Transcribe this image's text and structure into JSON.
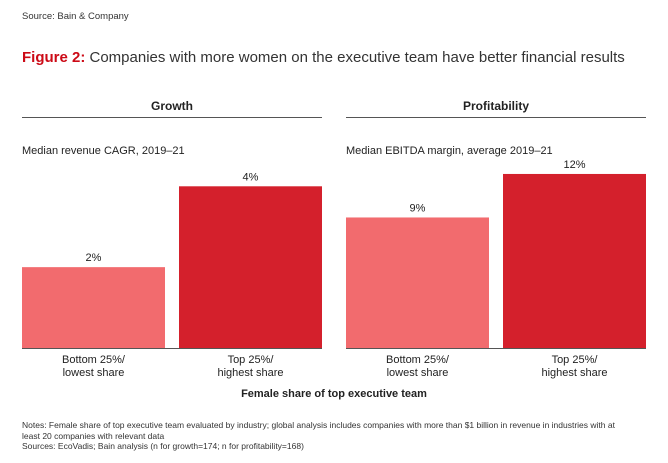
{
  "source_top": "Source: Bain & Company",
  "figure": {
    "label": "Figure 2:",
    "title": " Companies with more women on the executive team have better financial results"
  },
  "colors": {
    "accent": "#cc0a16",
    "bottom_bar": "#f26b6e",
    "top_bar": "#d4202c"
  },
  "chart_data": [
    {
      "type": "bar",
      "title": "Growth",
      "ylabel": "Median revenue CAGR, 2019–21",
      "categories": [
        [
          "Bottom 25%/",
          "lowest share"
        ],
        [
          "Top 25%/",
          "highest share"
        ]
      ],
      "values": [
        2,
        4
      ],
      "labels": [
        "2%",
        "4%"
      ],
      "ylim": [
        0,
        4.7
      ]
    },
    {
      "type": "bar",
      "title": "Profitability",
      "ylabel": "Median EBITDA margin, average 2019–21",
      "categories": [
        [
          "Bottom 25%/",
          "lowest share"
        ],
        [
          "Top 25%/",
          "highest share"
        ]
      ],
      "values": [
        9,
        12
      ],
      "labels": [
        "9%",
        "12%"
      ],
      "ylim": [
        0,
        13.1
      ]
    }
  ],
  "xlabel": "Female share of top executive team",
  "notes": [
    "Notes: Female share of top executive team evaluated by industry; global analysis includes companies with more than $1 billion in revenue in industries with at",
    "least 20 companies with relevant data",
    "Sources: EcoVadis; Bain analysis (n for growth=174; n for profitability=168)"
  ]
}
